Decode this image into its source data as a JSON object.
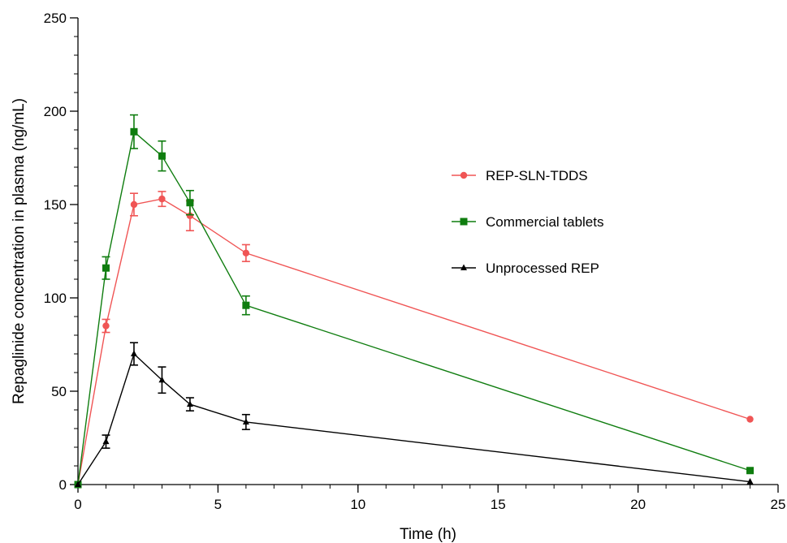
{
  "chart_data": {
    "type": "line",
    "xlabel": "Time (h)",
    "ylabel": "Repaglinide concentration in plasma (ng/mL)",
    "xlim": [
      0,
      25
    ],
    "ylim": [
      0,
      250
    ],
    "x_ticks": [
      0,
      5,
      10,
      15,
      20,
      25
    ],
    "x_tick_labels": [
      "0",
      "5",
      "10",
      "15",
      "20",
      "25"
    ],
    "y_ticks": [
      0,
      50,
      100,
      150,
      200,
      250
    ],
    "y_tick_labels": [
      "0",
      "50",
      "100",
      "150",
      "200",
      "250"
    ],
    "x_minor_step": 1,
    "y_minor_step": 10,
    "grid": false,
    "legend_position": "center-right",
    "x": [
      0,
      1,
      2,
      3,
      4,
      6,
      24
    ],
    "series": [
      {
        "name": "REP-SLN-TDDS",
        "color": "#f05555",
        "marker": "circle",
        "values": [
          0,
          85,
          150,
          153,
          144,
          124,
          35
        ],
        "errors": [
          0,
          3.5,
          6,
          4,
          8,
          4.5,
          0
        ]
      },
      {
        "name": "Commercial tablets",
        "color": "#0f7d0f",
        "marker": "square",
        "values": [
          0,
          116,
          189,
          176,
          151,
          96,
          7.5
        ],
        "errors": [
          0,
          6,
          9,
          8,
          6.5,
          5,
          0
        ]
      },
      {
        "name": "Unprocessed REP",
        "color": "#000000",
        "marker": "triangle",
        "values": [
          0,
          23,
          70,
          56,
          43,
          33.5,
          1.5
        ],
        "errors": [
          0,
          3.5,
          6,
          7,
          3.5,
          4,
          0
        ]
      }
    ]
  }
}
